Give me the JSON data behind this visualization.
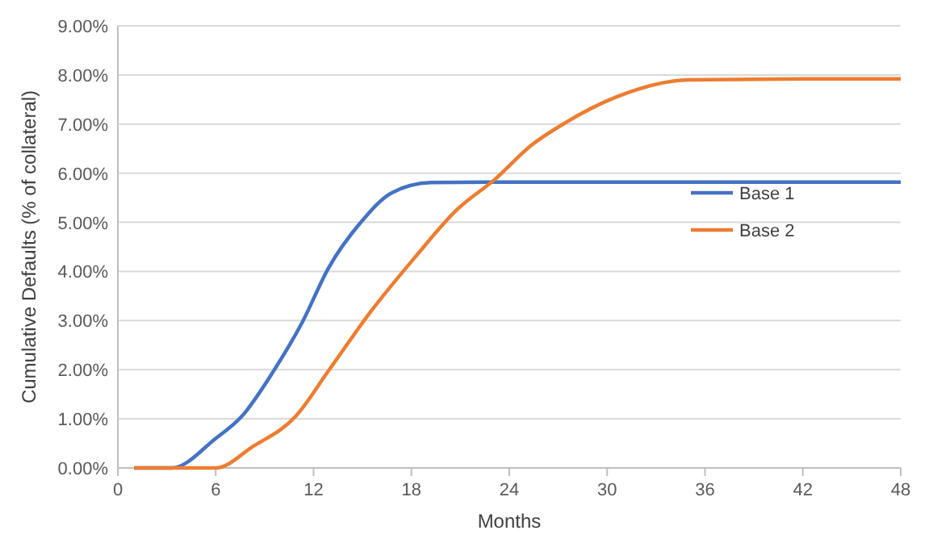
{
  "chart_data": {
    "type": "line",
    "xlabel": "Months",
    "ylabel": "Cumulative Defaults (% of collateral)",
    "xlim": [
      0,
      48
    ],
    "xticks": [
      0,
      6,
      12,
      18,
      24,
      30,
      36,
      42,
      48
    ],
    "ylim": [
      0,
      9
    ],
    "yticks": [
      {
        "value": 0,
        "label": "0.00%"
      },
      {
        "value": 1,
        "label": "1.00%"
      },
      {
        "value": 2,
        "label": "2.00%"
      },
      {
        "value": 3,
        "label": "3.00%"
      },
      {
        "value": 4,
        "label": "4.00%"
      },
      {
        "value": 5,
        "label": "5.00%"
      },
      {
        "value": 6,
        "label": "6.00%"
      },
      {
        "value": 7,
        "label": "7.00%"
      },
      {
        "value": 8,
        "label": "8.00%"
      },
      {
        "value": 9,
        "label": "9.00%"
      }
    ],
    "grid": "y",
    "legend": "right",
    "marker": "none",
    "line_style": "solid",
    "series": [
      {
        "name": "Base 1",
        "color": "#4472c4",
        "x": [
          1,
          3.3,
          6,
          7.6,
          9.6,
          11.3,
          12.9,
          14.9,
          16.8,
          19.2,
          24,
          30,
          36,
          42,
          48
        ],
        "values": [
          0,
          0,
          0.6,
          1.05,
          2.0,
          2.96,
          4.06,
          5.0,
          5.6,
          5.81,
          5.82,
          5.82,
          5.82,
          5.82,
          5.82
        ]
      },
      {
        "name": "Base 2",
        "color": "#ed7d31",
        "x": [
          1,
          6,
          8.3,
          10.9,
          12.9,
          15.5,
          18.2,
          20.8,
          23.1,
          25.4,
          27.4,
          30.7,
          35,
          42,
          48
        ],
        "values": [
          0,
          0,
          0.44,
          1.05,
          1.97,
          3.18,
          4.28,
          5.26,
          5.87,
          6.58,
          7.02,
          7.57,
          7.9,
          7.92,
          7.92
        ]
      }
    ]
  }
}
